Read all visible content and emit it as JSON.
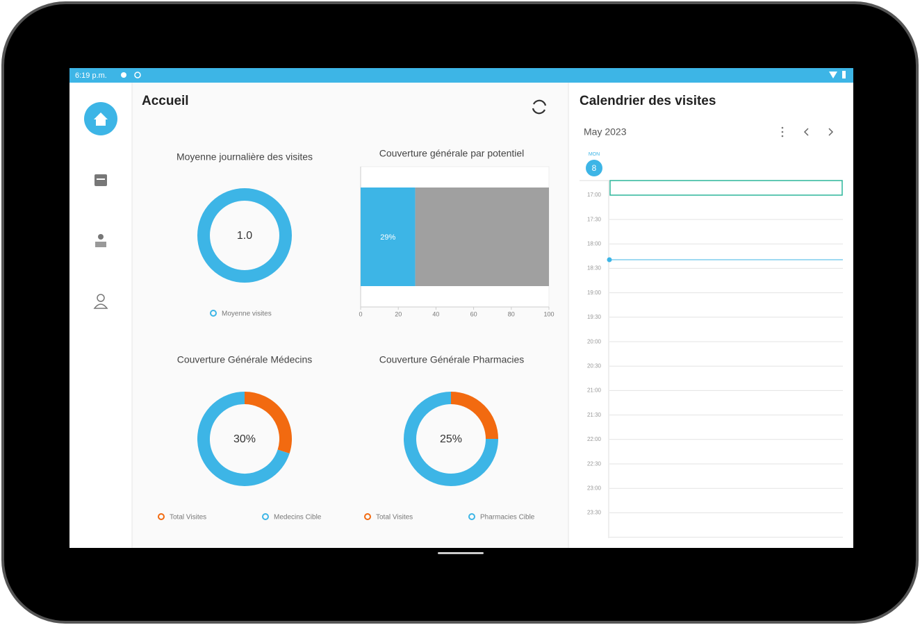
{
  "status_bar": {
    "time": "6:19 p.m."
  },
  "header": {
    "title": "Accueil"
  },
  "chart_data": [
    {
      "type": "donut",
      "title": "Moyenne journalière des visites",
      "categories": [
        "Moyenne visites"
      ],
      "values": [
        1
      ],
      "value_labels": [
        "1.0"
      ],
      "colors": [
        "#3db5e6"
      ]
    },
    {
      "type": "stacked_bar_h",
      "title": "Couverture générale par potentiel",
      "series": [
        {
          "color": "#3db5e6",
          "values": [
            29
          ],
          "value_labels": [
            "29%"
          ]
        },
        {
          "color": "#a0a0a0",
          "values": [
            71
          ]
        }
      ],
      "xlim": [
        0,
        100
      ],
      "xticks": [
        0,
        20,
        40,
        60,
        80,
        100
      ]
    },
    {
      "type": "donut",
      "title": "Couverture Générale Médecins",
      "categories": [
        "Total Visites",
        "Medecins Cible"
      ],
      "values": [
        30,
        70
      ],
      "value_labels": [
        "30%",
        null
      ],
      "colors": [
        "#f26a10",
        "#3db5e6"
      ]
    },
    {
      "type": "donut",
      "title": "Couverture Générale Pharmacies",
      "categories": [
        "Total Visites",
        "Pharmacies Cible"
      ],
      "values": [
        25,
        75
      ],
      "value_labels": [
        "25%",
        null
      ],
      "colors": [
        "#f26a10",
        "#3db5e6"
      ]
    }
  ],
  "calendar": {
    "title": "Calendrier des visites",
    "month": "May 2023",
    "weekday": "MON",
    "day": 8,
    "times": [
      "17:00",
      "17:30",
      "18:00",
      "18:30",
      "19:00",
      "19:30",
      "20:00",
      "20:30",
      "21:00",
      "21:30",
      "22:00",
      "22:30",
      "23:00",
      "23:30"
    ]
  }
}
